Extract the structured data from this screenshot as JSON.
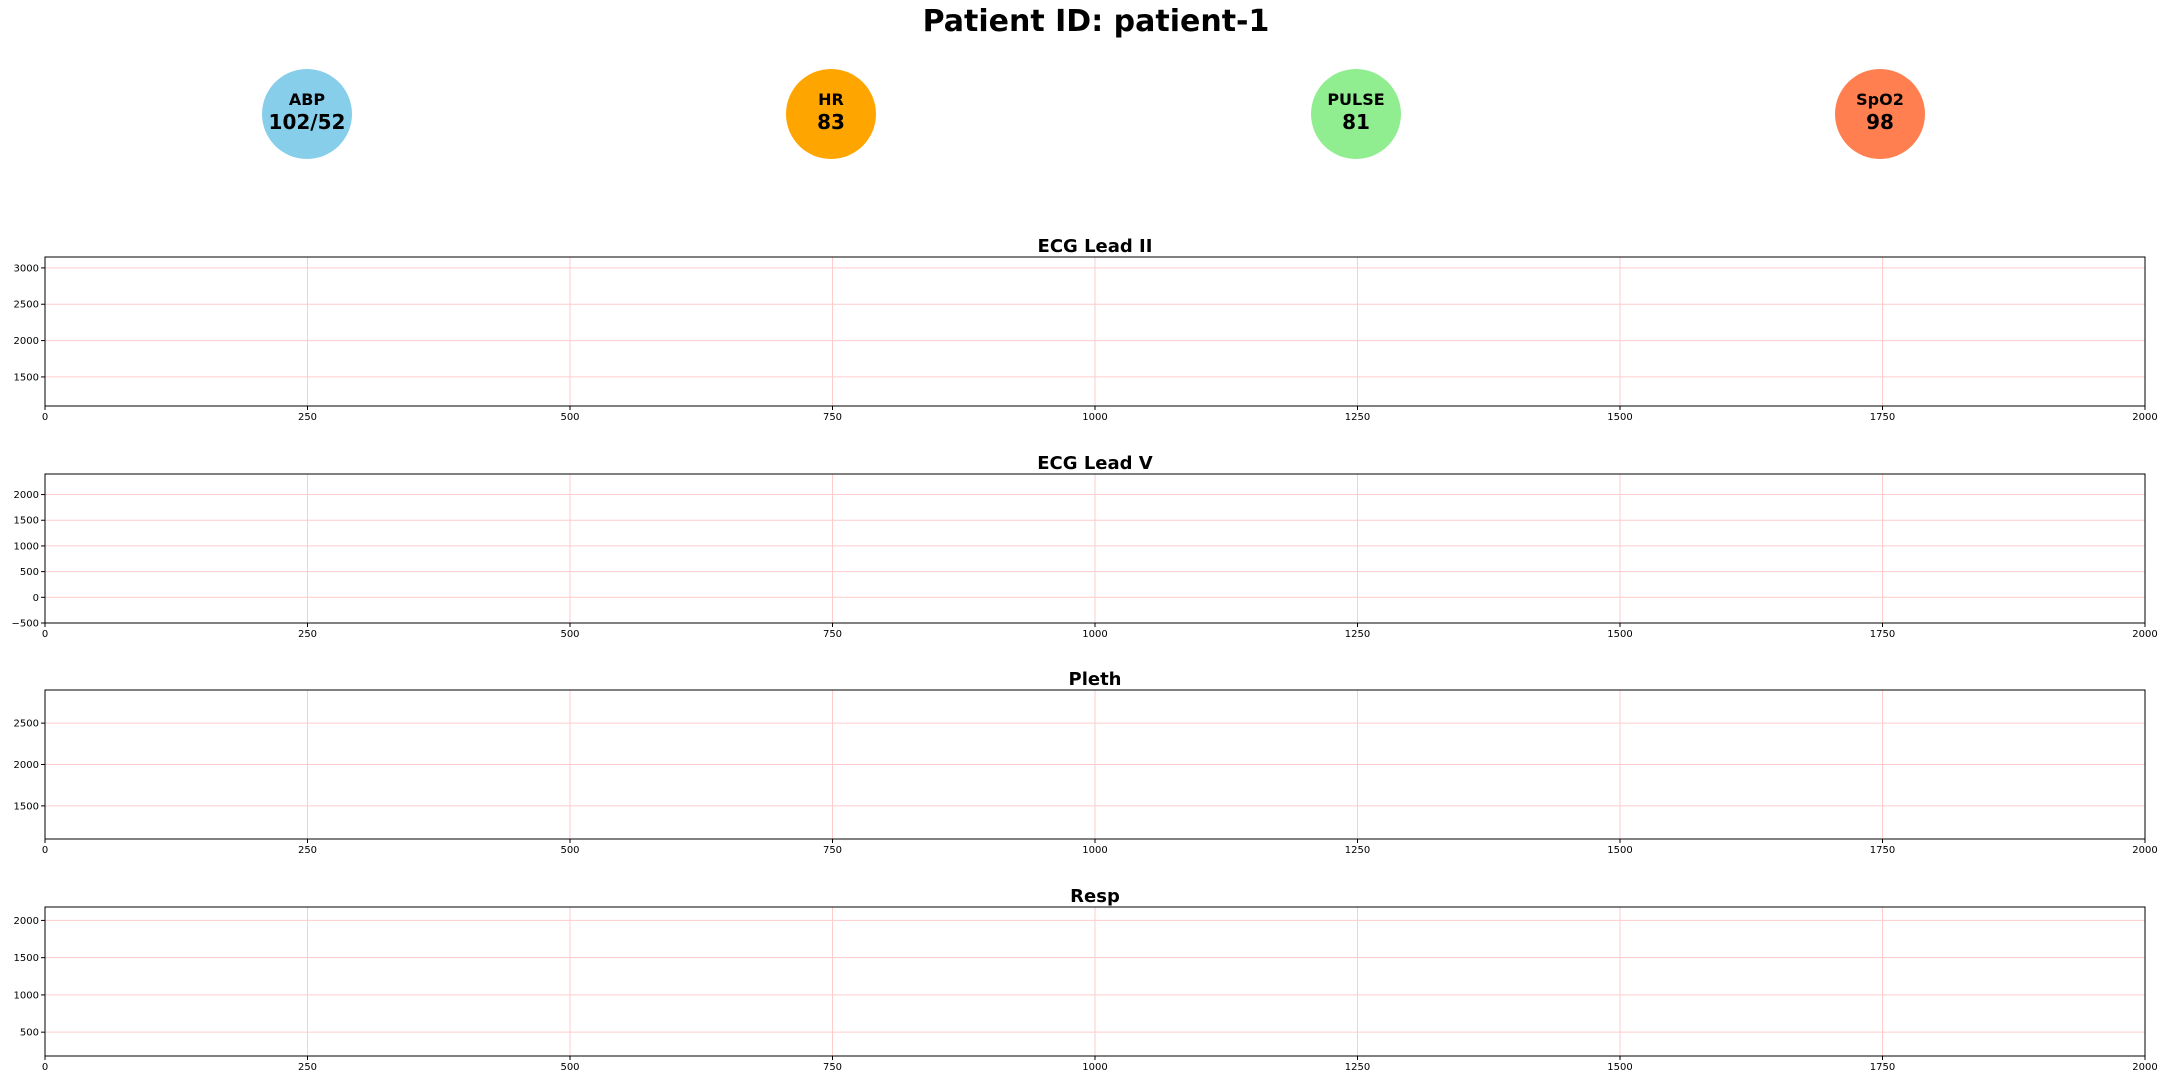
{
  "header": {
    "title": "Patient ID: patient-1"
  },
  "vitals": [
    {
      "label": "ABP",
      "value": "102/52",
      "color": "#87ceeb"
    },
    {
      "label": "HR",
      "value": "83",
      "color": "#ffa500"
    },
    {
      "label": "PULSE",
      "value": "81",
      "color": "#90ee90"
    },
    {
      "label": "SpO2",
      "value": "98",
      "color": "#ff7f50"
    }
  ],
  "chart_data": [
    {
      "type": "line",
      "title": "ECG Lead II",
      "xlim": [
        0,
        2000
      ],
      "ylim": [
        1100,
        3150
      ],
      "xticks": [
        0,
        250,
        500,
        750,
        1000,
        1250,
        1500,
        1750,
        2000
      ],
      "yticks": [
        1500,
        2000,
        2500,
        3000
      ],
      "grid": true,
      "grid_color": "#ffcccc",
      "series": []
    },
    {
      "type": "line",
      "title": "ECG Lead V",
      "xlim": [
        0,
        2000
      ],
      "ylim": [
        -500,
        2400
      ],
      "xticks": [
        0,
        250,
        500,
        750,
        1000,
        1250,
        1500,
        1750,
        2000
      ],
      "yticks": [
        -500,
        0,
        500,
        1000,
        1500,
        2000
      ],
      "grid": true,
      "grid_color": "#ffcccc",
      "series": []
    },
    {
      "type": "line",
      "title": "Pleth",
      "xlim": [
        0,
        2000
      ],
      "ylim": [
        1100,
        2900
      ],
      "xticks": [
        0,
        250,
        500,
        750,
        1000,
        1250,
        1500,
        1750,
        2000
      ],
      "yticks": [
        1500,
        2000,
        2500
      ],
      "grid": true,
      "grid_color": "#ffcccc",
      "series": []
    },
    {
      "type": "line",
      "title": "Resp",
      "xlim": [
        0,
        2000
      ],
      "ylim": [
        180,
        2180
      ],
      "xticks": [
        0,
        250,
        500,
        750,
        1000,
        1250,
        1500,
        1750,
        2000
      ],
      "yticks": [
        500,
        1000,
        1500,
        2000
      ],
      "grid": true,
      "grid_color": "#ffcccc",
      "series": []
    }
  ]
}
